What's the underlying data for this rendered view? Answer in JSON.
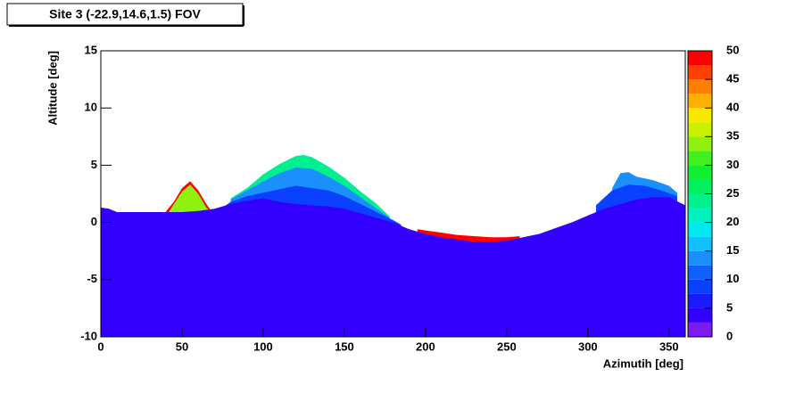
{
  "chart_data": {
    "type": "contour-fill",
    "title": "Site 3 (-22.9,14.6,1.5) FOV",
    "x_label": "Azimutih [deg]",
    "y_label": "Altitude [deg]",
    "xlim": [
      0,
      360
    ],
    "xticks": [
      0,
      50,
      100,
      150,
      200,
      250,
      300,
      350
    ],
    "ylim": [
      -10,
      15
    ],
    "yticks": [
      -10,
      -5,
      0,
      5,
      10,
      15
    ],
    "zlim": [
      0,
      50
    ],
    "zticks": [
      0,
      5,
      10,
      15,
      20,
      25,
      30,
      35,
      40,
      45,
      50
    ],
    "palette": [
      "#7a1cf0",
      "#3300ff",
      "#1a1aff",
      "#0a40ff",
      "#1060ff",
      "#1a90ff",
      "#10c0ff",
      "#00e8f0",
      "#00f0c0",
      "#00f090",
      "#00f060",
      "#10f030",
      "#40f020",
      "#90f010",
      "#c8f000",
      "#f8e800",
      "#ffb000",
      "#ff8000",
      "#ff4000",
      "#ff0000"
    ],
    "series": [
      {
        "z": 24,
        "x": [
          80,
          90,
          100,
          110,
          120,
          125,
          130,
          140,
          150,
          160,
          170,
          178
        ],
        "values": [
          2.1,
          3.0,
          4.2,
          5.1,
          5.8,
          5.9,
          5.7,
          4.9,
          3.9,
          2.7,
          1.6,
          0.5
        ]
      },
      {
        "z": 14,
        "x": [
          80,
          90,
          100,
          110,
          120,
          130,
          140,
          150,
          160,
          170,
          178
        ],
        "values": [
          2.0,
          2.8,
          3.6,
          4.3,
          4.8,
          4.7,
          4.0,
          3.2,
          2.2,
          1.2,
          0.4
        ]
      },
      {
        "z": 14,
        "x": [
          315,
          320,
          325,
          330,
          340,
          350,
          355
        ],
        "values": [
          3.0,
          4.3,
          4.4,
          4.0,
          3.7,
          3.2,
          2.6
        ]
      },
      {
        "z": 9,
        "x": [
          75,
          80,
          90,
          100,
          110,
          120,
          130,
          140,
          150,
          160,
          170,
          180,
          185
        ],
        "values": [
          1.3,
          1.8,
          2.3,
          2.6,
          2.9,
          3.2,
          3.0,
          2.8,
          2.3,
          1.6,
          0.9,
          0.2,
          -0.2
        ]
      },
      {
        "z": 9,
        "x": [
          305,
          315,
          325,
          335,
          345,
          355
        ],
        "values": [
          1.5,
          2.8,
          3.3,
          3.2,
          2.8,
          2.3
        ]
      },
      {
        "z": 48,
        "x": [
          38,
          45,
          50,
          55,
          60,
          65,
          68
        ],
        "values": [
          0.6,
          1.8,
          3.0,
          3.6,
          2.8,
          1.6,
          1.0
        ]
      },
      {
        "z": 33,
        "x": [
          40,
          45,
          50,
          55,
          60,
          65,
          68
        ],
        "values": [
          0.5,
          1.6,
          2.7,
          3.3,
          2.5,
          1.3,
          0.9
        ]
      },
      {
        "z": 48,
        "x": [
          195,
          200,
          210,
          220,
          230,
          240,
          250,
          258
        ],
        "values": [
          -0.6,
          -0.7,
          -0.9,
          -1.1,
          -1.2,
          -1.3,
          -1.3,
          -1.2
        ]
      },
      {
        "z": 4,
        "x": [
          0,
          5,
          10,
          20,
          35,
          50,
          60,
          70,
          80,
          90,
          100,
          110,
          120,
          130,
          140,
          150,
          160,
          170,
          180,
          190,
          200,
          210,
          220,
          230,
          240,
          250,
          260,
          270,
          280,
          290,
          300,
          310,
          320,
          330,
          340,
          350,
          360
        ],
        "values": [
          1.3,
          1.2,
          0.9,
          0.9,
          0.9,
          0.9,
          1.0,
          1.2,
          1.6,
          1.9,
          2.1,
          1.8,
          1.6,
          1.5,
          1.4,
          1.2,
          0.8,
          0.4,
          0.0,
          -0.6,
          -1.0,
          -1.3,
          -1.5,
          -1.7,
          -1.7,
          -1.6,
          -1.3,
          -1.0,
          -0.5,
          0.0,
          0.6,
          1.2,
          1.6,
          2.0,
          2.2,
          2.2,
          1.5
        ]
      }
    ]
  }
}
